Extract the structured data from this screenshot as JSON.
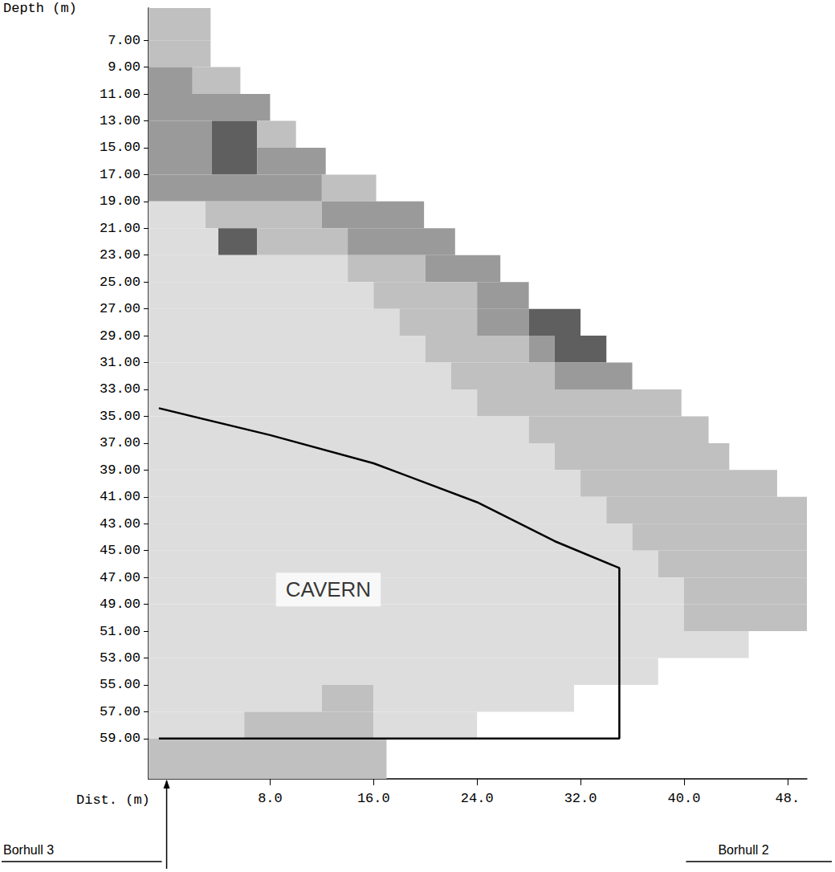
{
  "chart_data": {
    "type": "tomogram",
    "y_label": "Depth (m)",
    "x_label": "Dist. (m)",
    "xlim": [
      -1.4,
      49.5
    ],
    "ylim": [
      4.6,
      62
    ],
    "xticks": [
      {
        "value": 8,
        "label": "8.0"
      },
      {
        "value": 16,
        "label": "16.0"
      },
      {
        "value": 24,
        "label": "24.0"
      },
      {
        "value": 32,
        "label": "32.0"
      },
      {
        "value": 40,
        "label": "40.0"
      },
      {
        "value": 48,
        "label": "48."
      }
    ],
    "yticks": [
      {
        "value": 7,
        "label": "7.00"
      },
      {
        "value": 9,
        "label": "9.00"
      },
      {
        "value": 11,
        "label": "11.00"
      },
      {
        "value": 13,
        "label": "13.00"
      },
      {
        "value": 15,
        "label": "15.00"
      },
      {
        "value": 17,
        "label": "17.00"
      },
      {
        "value": 19,
        "label": "19.00"
      },
      {
        "value": 21,
        "label": "21.00"
      },
      {
        "value": 23,
        "label": "23.00"
      },
      {
        "value": 25,
        "label": "25.00"
      },
      {
        "value": 27,
        "label": "27.00"
      },
      {
        "value": 29,
        "label": "29.00"
      },
      {
        "value": 31,
        "label": "31.00"
      },
      {
        "value": 33,
        "label": "33.00"
      },
      {
        "value": 35,
        "label": "35.00"
      },
      {
        "value": 37,
        "label": "37.00"
      },
      {
        "value": 39,
        "label": "39.00"
      },
      {
        "value": 41,
        "label": "41.00"
      },
      {
        "value": 43,
        "label": "43.00"
      },
      {
        "value": 45,
        "label": "45.00"
      },
      {
        "value": 47,
        "label": "47.00"
      },
      {
        "value": 49,
        "label": "49.00"
      },
      {
        "value": 51,
        "label": "51.00"
      },
      {
        "value": 53,
        "label": "53.00"
      },
      {
        "value": 55,
        "label": "55.00"
      },
      {
        "value": 57,
        "label": "57.00"
      },
      {
        "value": 59,
        "label": "59.00"
      }
    ],
    "grid": false,
    "cells": [
      {
        "depth": [
          4.6,
          7
        ],
        "segments": [
          [
            -1.4,
            3.4,
            2
          ]
        ]
      },
      {
        "depth": [
          7,
          9
        ],
        "segments": [
          [
            -1.4,
            3.4,
            2
          ]
        ]
      },
      {
        "depth": [
          9,
          11
        ],
        "segments": [
          [
            -1.4,
            2,
            3
          ],
          [
            2,
            5.7,
            2
          ]
        ]
      },
      {
        "depth": [
          11,
          13
        ],
        "segments": [
          [
            -1.4,
            8,
            3
          ]
        ]
      },
      {
        "depth": [
          13,
          15
        ],
        "segments": [
          [
            -1.4,
            3.5,
            3
          ],
          [
            3.5,
            7,
            4
          ],
          [
            7,
            10,
            2
          ]
        ]
      },
      {
        "depth": [
          15,
          17
        ],
        "segments": [
          [
            -1.4,
            3.5,
            3
          ],
          [
            3.5,
            7,
            4
          ],
          [
            7,
            12.3,
            3
          ]
        ]
      },
      {
        "depth": [
          17,
          19
        ],
        "segments": [
          [
            -1.4,
            12,
            3
          ],
          [
            12,
            16.2,
            2
          ]
        ]
      },
      {
        "depth": [
          19,
          21
        ],
        "segments": [
          [
            -1.4,
            3,
            1
          ],
          [
            3,
            12,
            2
          ],
          [
            12,
            19.9,
            3
          ]
        ]
      },
      {
        "depth": [
          21,
          23
        ],
        "segments": [
          [
            -1.4,
            4,
            1
          ],
          [
            4,
            7,
            4
          ],
          [
            7,
            14,
            2
          ],
          [
            14,
            22.3,
            3
          ]
        ]
      },
      {
        "depth": [
          23,
          25
        ],
        "segments": [
          [
            -1.4,
            14,
            1
          ],
          [
            14,
            20,
            2
          ],
          [
            20,
            25.8,
            3
          ]
        ]
      },
      {
        "depth": [
          25,
          27
        ],
        "segments": [
          [
            -1.4,
            16,
            1
          ],
          [
            16,
            24,
            2
          ],
          [
            24,
            28,
            3
          ]
        ]
      },
      {
        "depth": [
          27,
          29
        ],
        "segments": [
          [
            -1.4,
            18,
            1
          ],
          [
            18,
            24,
            2
          ],
          [
            24,
            28,
            3
          ],
          [
            28,
            32,
            4
          ]
        ]
      },
      {
        "depth": [
          29,
          31
        ],
        "segments": [
          [
            -1.4,
            20,
            1
          ],
          [
            20,
            28,
            2
          ],
          [
            28,
            30,
            3
          ],
          [
            30,
            34,
            4
          ]
        ]
      },
      {
        "depth": [
          31,
          33
        ],
        "segments": [
          [
            -1.4,
            22,
            1
          ],
          [
            22,
            30,
            2
          ],
          [
            30,
            36,
            3
          ]
        ]
      },
      {
        "depth": [
          33,
          35
        ],
        "segments": [
          [
            -1.4,
            24,
            1
          ],
          [
            24,
            39.8,
            2
          ]
        ]
      },
      {
        "depth": [
          35,
          37
        ],
        "segments": [
          [
            -1.4,
            28,
            1
          ],
          [
            28,
            41.9,
            2
          ]
        ]
      },
      {
        "depth": [
          37,
          39
        ],
        "segments": [
          [
            -1.4,
            30,
            1
          ],
          [
            30,
            43.5,
            2
          ]
        ]
      },
      {
        "depth": [
          39,
          41
        ],
        "segments": [
          [
            -1.4,
            32,
            1
          ],
          [
            32,
            47.2,
            2
          ]
        ]
      },
      {
        "depth": [
          41,
          43
        ],
        "segments": [
          [
            -1.4,
            34,
            1
          ],
          [
            34,
            49.5,
            2
          ]
        ]
      },
      {
        "depth": [
          43,
          45
        ],
        "segments": [
          [
            -1.4,
            36,
            1
          ],
          [
            36,
            49.5,
            2
          ]
        ]
      },
      {
        "depth": [
          45,
          47
        ],
        "segments": [
          [
            -1.4,
            38,
            1
          ],
          [
            38,
            49.5,
            2
          ]
        ]
      },
      {
        "depth": [
          47,
          49
        ],
        "segments": [
          [
            -1.4,
            40,
            1
          ],
          [
            40,
            49.5,
            2
          ]
        ]
      },
      {
        "depth": [
          49,
          51
        ],
        "segments": [
          [
            -1.4,
            40,
            1
          ],
          [
            40,
            49.5,
            2
          ]
        ]
      },
      {
        "depth": [
          51,
          53
        ],
        "segments": [
          [
            -1.4,
            45,
            1
          ]
        ]
      },
      {
        "depth": [
          53,
          55
        ],
        "segments": [
          [
            -1.4,
            38,
            1
          ]
        ]
      },
      {
        "depth": [
          55,
          57
        ],
        "segments": [
          [
            -1.4,
            12,
            1
          ],
          [
            12,
            16,
            2
          ],
          [
            16,
            31.5,
            1
          ]
        ]
      },
      {
        "depth": [
          57,
          59
        ],
        "segments": [
          [
            -1.4,
            6,
            1
          ],
          [
            6,
            16,
            2
          ],
          [
            16,
            24,
            1
          ]
        ]
      },
      {
        "depth": [
          59,
          62
        ],
        "segments": [
          [
            -1.4,
            17,
            2
          ]
        ]
      }
    ],
    "cavern": {
      "label": "CAVERN",
      "label_at": [
        12.5,
        47.9
      ],
      "outline": [
        [
          -0.6,
          34.4
        ],
        [
          8,
          36.4
        ],
        [
          16,
          38.5
        ],
        [
          24,
          41.4
        ],
        [
          30,
          44.3
        ],
        [
          35,
          46.3
        ],
        [
          35,
          59
        ],
        [
          -0.6,
          59
        ]
      ]
    },
    "boreholes": [
      {
        "label": "Borhull 3",
        "x": 0
      },
      {
        "label": "Borhull 2",
        "x": 48
      }
    ]
  }
}
